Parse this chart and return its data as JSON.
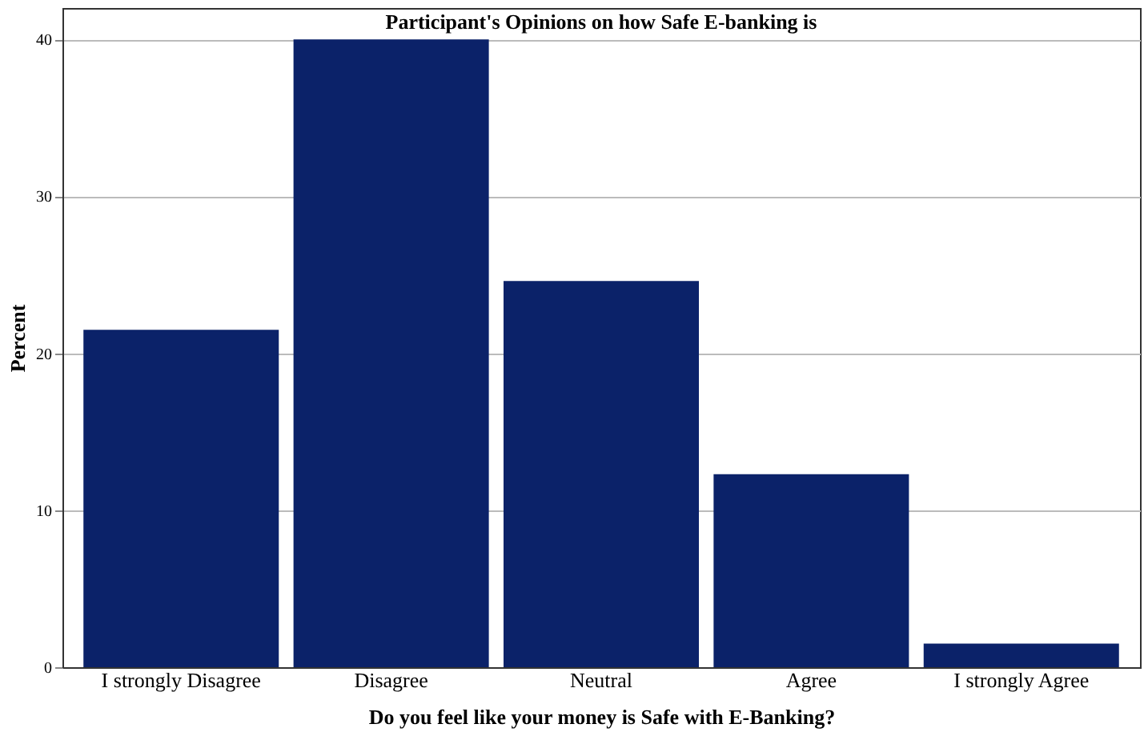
{
  "chart_data": {
    "type": "bar",
    "title": "Participant's Opinions on how Safe E-banking is",
    "xlabel": "Do you feel like your money is Safe with E-Banking?",
    "ylabel": "Percent",
    "categories": [
      "I strongly Disagree",
      "Disagree",
      "Neutral",
      "Agree",
      "I strongly Agree"
    ],
    "values": [
      21.5,
      40,
      24.6,
      12.3,
      1.5
    ],
    "color": "#0b2269",
    "ylim": [
      0,
      42
    ],
    "yticks": [
      0,
      10,
      20,
      30,
      40
    ],
    "grid": "y"
  }
}
